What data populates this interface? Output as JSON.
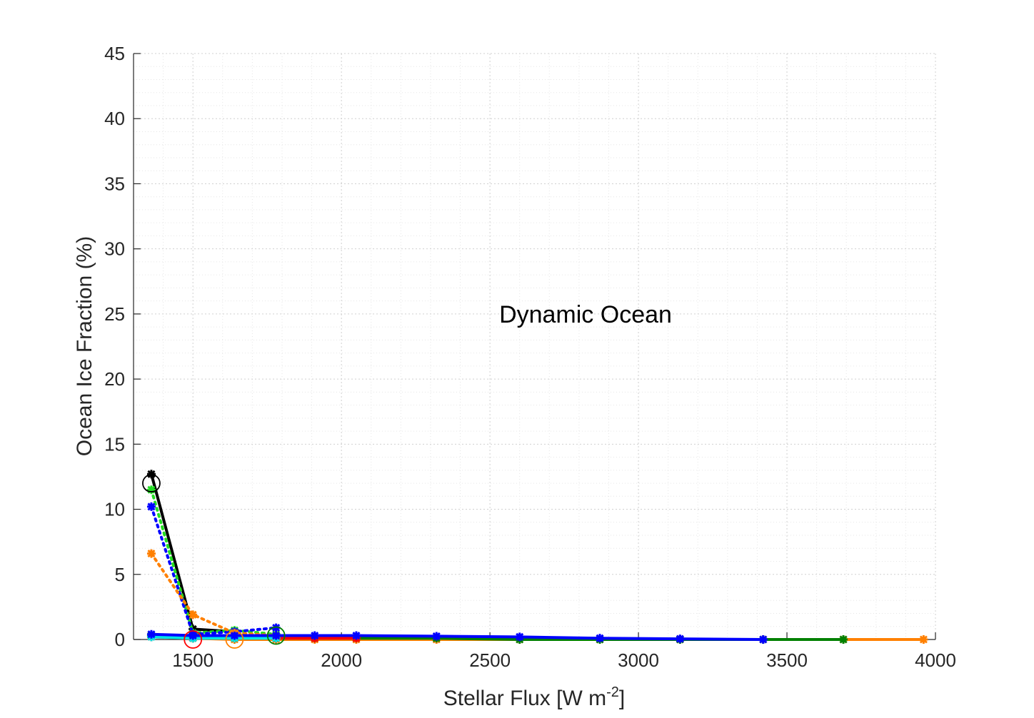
{
  "chart_data": {
    "type": "line",
    "xlabel": "Stellar Flux [W m",
    "xlabel_exponent": "-2",
    "xlabel_close": "]",
    "ylabel": "Ocean Ice Fraction (%)",
    "annotation": "Dynamic Ocean",
    "xlim": [
      1300,
      4000
    ],
    "ylim": [
      0,
      45
    ],
    "x_ticks": [
      1500,
      2000,
      2500,
      3000,
      3500,
      4000
    ],
    "x_tick_labels": [
      "1500",
      "2000",
      "2500",
      "3000",
      "3500",
      "4000"
    ],
    "y_ticks": [
      0,
      5,
      10,
      15,
      20,
      25,
      30,
      35,
      40,
      45
    ],
    "y_tick_labels": [
      "0",
      "5",
      "10",
      "15",
      "20",
      "25",
      "30",
      "35",
      "40",
      "45"
    ],
    "grid": true,
    "minor_grid": true,
    "series": [
      {
        "color": "#ff8000",
        "style": "solid",
        "marker": "star",
        "x": [
          1360,
          1500,
          1640,
          1780,
          1910,
          2050,
          2320,
          2600,
          2870,
          3140,
          3420,
          3690,
          3960
        ],
        "y": [
          0.3,
          0.1,
          0.0,
          0.0,
          0.0,
          0.0,
          0.0,
          0.0,
          0.0,
          0.0,
          0.0,
          0.0,
          0.0
        ]
      },
      {
        "color": "#008000",
        "style": "solid",
        "marker": "star",
        "x": [
          1360,
          1500,
          1640,
          1780,
          1910,
          2050,
          2320,
          2600,
          2870,
          3140,
          3420,
          3690
        ],
        "y": [
          0.3,
          0.1,
          0.1,
          0.1,
          0.1,
          0.1,
          0.1,
          0.0,
          0.0,
          0.0,
          0.0,
          0.0
        ]
      },
      {
        "color": "#ff0000",
        "style": "solid",
        "marker": "star",
        "x": [
          1360,
          1500,
          1640,
          1780,
          1910,
          2050
        ],
        "y": [
          0.2,
          0.1,
          0.1,
          0.1,
          0.1,
          0.1
        ]
      },
      {
        "color": "#00e5e5",
        "style": "solid",
        "marker": "star",
        "x": [
          1360,
          1500,
          1640,
          1780
        ],
        "y": [
          0.2,
          0.1,
          0.1,
          0.1
        ]
      },
      {
        "color": "#000000",
        "style": "solid",
        "marker": "star",
        "x": [
          1360,
          1500,
          1640
        ],
        "y": [
          12.7,
          0.8,
          0.6
        ]
      },
      {
        "color": "#22dd22",
        "style": "dotted",
        "marker": "star",
        "x": [
          1360,
          1500,
          1640,
          1780
        ],
        "y": [
          11.5,
          0.5,
          0.7,
          0.4
        ]
      },
      {
        "color": "#0000ff",
        "style": "dotted",
        "marker": "star",
        "x": [
          1360,
          1500,
          1640,
          1780
        ],
        "y": [
          10.2,
          0.4,
          0.6,
          0.9
        ]
      },
      {
        "color": "#ff8000",
        "style": "dotted",
        "marker": "star",
        "x": [
          1360,
          1500,
          1640,
          1780
        ],
        "y": [
          6.6,
          1.9,
          0.5,
          0.3
        ]
      },
      {
        "color": "#0000ff",
        "style": "solid",
        "marker": "star",
        "x": [
          1360,
          1500,
          1640,
          1780,
          1910,
          2050,
          2320,
          2600,
          2870,
          3140,
          3420
        ],
        "y": [
          0.4,
          0.3,
          0.3,
          0.3,
          0.3,
          0.3,
          0.25,
          0.2,
          0.1,
          0.05,
          0.0
        ]
      }
    ],
    "circle_markers": [
      {
        "color": "#000000",
        "x": 1360,
        "y": 12.0
      },
      {
        "color": "#ff0000",
        "x": 1500,
        "y": 0.0
      },
      {
        "color": "#ff8000",
        "x": 1640,
        "y": 0.0
      },
      {
        "color": "#008000",
        "x": 1780,
        "y": 0.3
      }
    ]
  }
}
